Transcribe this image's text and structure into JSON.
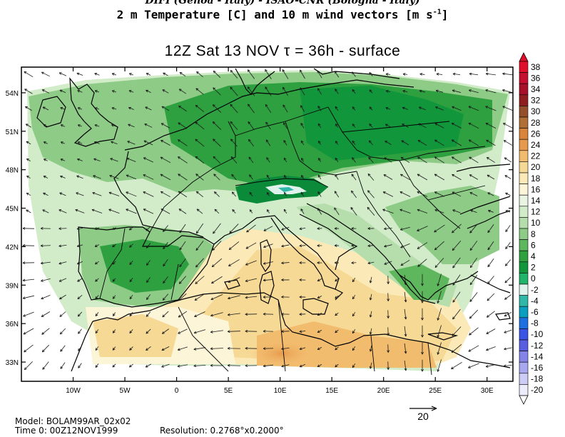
{
  "header": {
    "line1": "DIFI (Genoa - Italy)  -  ISAO-CNR (Bologna - Italy)",
    "line2_main": "2 m Temperature [C] and 10 m wind vectors [m s",
    "line2_sup": "-1",
    "line2_end": "]",
    "valid_time": "12Z Sat 13 NOV  τ = 36h  -  surface"
  },
  "axes": {
    "lon_labels": [
      "10W",
      "5W",
      "0",
      "5E",
      "10E",
      "15E",
      "20E",
      "25E",
      "30E"
    ],
    "lat_labels": [
      "54N",
      "51N",
      "48N",
      "45N",
      "42N",
      "39N",
      "36N",
      "33N"
    ],
    "lon_range": [
      -15,
      32.5
    ],
    "lat_range": [
      31.5,
      56
    ]
  },
  "colorbar": {
    "labels": [
      "38",
      "36",
      "34",
      "32",
      "30",
      "28",
      "26",
      "24",
      "22",
      "20",
      "18",
      "16",
      "14",
      "12",
      "10",
      "8",
      "6",
      "4",
      "2",
      "0",
      "-2",
      "-4",
      "-6",
      "-8",
      "-10",
      "-12",
      "-14",
      "-16",
      "-18",
      "-20"
    ],
    "colors": [
      "#e0102a",
      "#c40f30",
      "#a8102a",
      "#8f1f1f",
      "#93502a",
      "#b07035",
      "#d8843a",
      "#e79a4d",
      "#f2bc6e",
      "#f7d996",
      "#fbeab8",
      "#fdf5d8",
      "#e9f5e2",
      "#d2ecca",
      "#b5deac",
      "#8dcb86",
      "#5eb65d",
      "#2ea040",
      "#11963c",
      "#1fb56a",
      "#dff2ec",
      "#2fb8a8",
      "#0a9fc0",
      "#1e70e0",
      "#3a54e6",
      "#5a5ee0",
      "#8383e8",
      "#a8a8f0",
      "#ccccf6",
      "#ececfb"
    ]
  },
  "vector_scale": {
    "label": "20"
  },
  "footer": {
    "model": "Model: BOLAM99AR_02x02",
    "time0": "Time 0: 00Z12NOV1999",
    "resolution": "Resolution: 0.2768°x0.2000°"
  },
  "colors": {
    "frame": "#000000",
    "coast": "#000000",
    "vector": "#1a1a1a"
  }
}
